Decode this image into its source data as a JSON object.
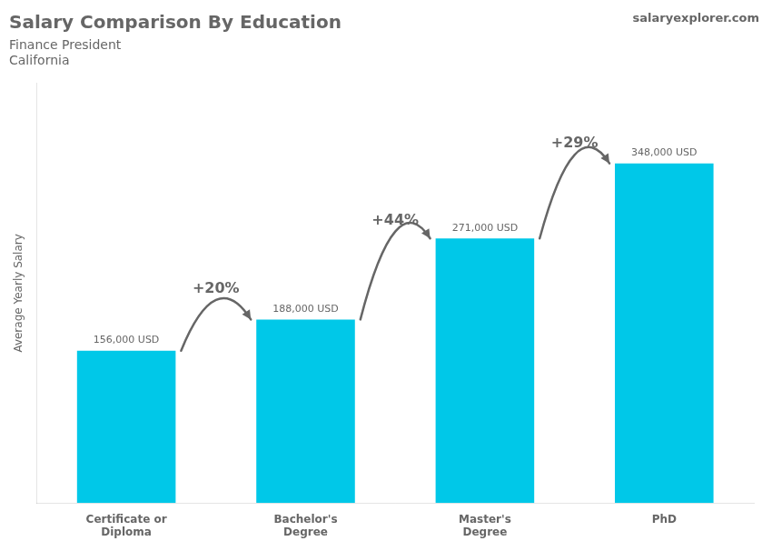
{
  "chart_data": {
    "type": "bar",
    "title": "Salary Comparison By Education",
    "subtitle": "Finance President",
    "location": "California",
    "brand": "salaryexplorer.com",
    "ylabel": "Average Yearly Salary",
    "categories": [
      "Certificate or\nDiploma",
      "Bachelor's\nDegree",
      "Master's\nDegree",
      "PhD"
    ],
    "values": [
      156000,
      188000,
      271000,
      348000
    ],
    "value_labels": [
      "156,000 USD",
      "188,000 USD",
      "271,000 USD",
      "348,000 USD"
    ],
    "data_labels": true,
    "annotations": [
      "+20%",
      "+44%",
      "+29%"
    ],
    "color": "#00c8e8",
    "ylim": [
      0,
      430000
    ],
    "tick_labels": "x",
    "grid": false
  }
}
